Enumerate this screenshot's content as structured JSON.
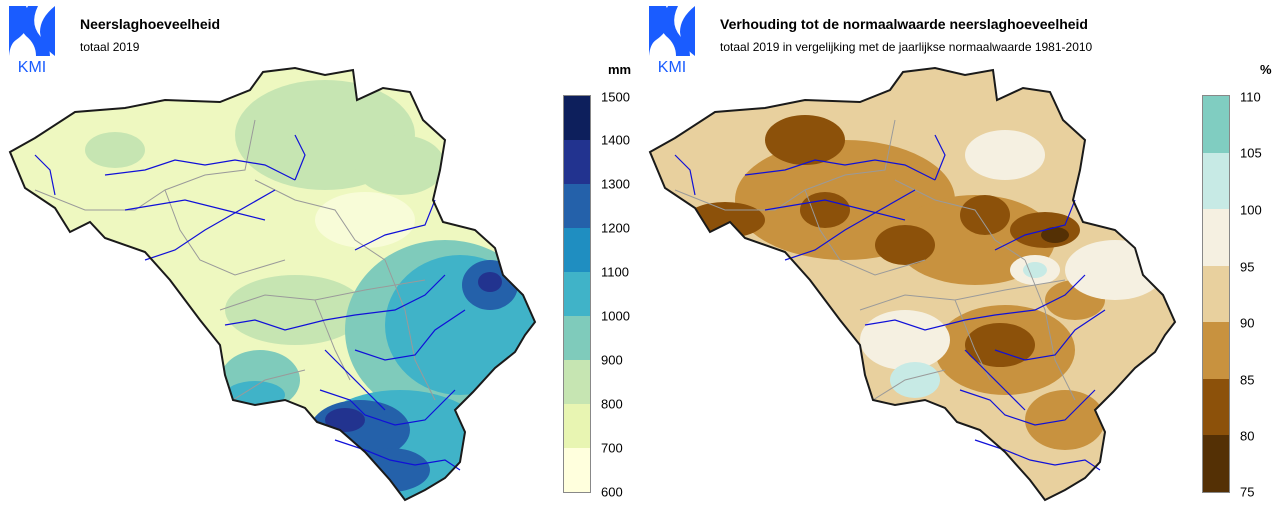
{
  "left_map": {
    "logo_text": "KMI",
    "title": "Neerslaghoeveelheid",
    "subtitle": "totaal 2019",
    "legend_unit": "mm",
    "legend_ticks": [
      "1500",
      "1400",
      "1300",
      "1200",
      "1100",
      "1000",
      "900",
      "800",
      "700",
      "600"
    ],
    "legend_colors": [
      "#0d1f5c",
      "#22338f",
      "#2461aa",
      "#1f8ec1",
      "#40b3c8",
      "#7fcbbb",
      "#c6e5b2",
      "#e8f5b2",
      "#ffffdd"
    ],
    "region_colors": {
      "low": "#eef8c0",
      "mid": "#c6e5b2",
      "high1": "#7fcbbb",
      "high2": "#40b3c8",
      "high3": "#2461aa",
      "top": "#22338f"
    }
  },
  "right_map": {
    "logo_text": "KMI",
    "title": "Verhouding tot de normaalwaarde neerslaghoeveelheid",
    "subtitle": "totaal 2019 in vergelijking met de jaarlijkse normaalwaarde 1981-2010",
    "legend_unit": "%",
    "legend_ticks": [
      "110",
      "105",
      "100",
      "95",
      "90",
      "85",
      "80",
      "75"
    ],
    "legend_colors": [
      "#80cdc1",
      "#c7eae5",
      "#f5f0e1",
      "#e8d09e",
      "#c8923f",
      "#8c510a",
      "#543005"
    ],
    "region_colors": {
      "base": "#e8d09e",
      "mid": "#c8923f",
      "dark": "#8c510a",
      "light": "#f5f0e1",
      "wet": "#c7eae5"
    }
  },
  "logo_color": "#1a5cff",
  "border_color": "#1a1a1a",
  "river_color": "#1010d8",
  "province_color": "#9a9a9a"
}
